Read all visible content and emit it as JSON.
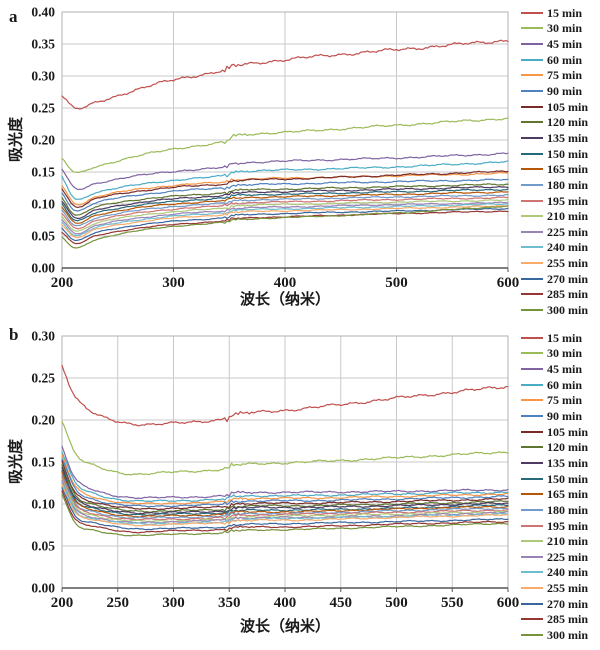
{
  "chart_data": [
    {
      "type": "line",
      "panel_label": "a",
      "xlabel": "波长（纳米）",
      "ylabel": "吸光度",
      "xlim": [
        200,
        600
      ],
      "xticks": [
        200,
        300,
        400,
        500,
        600
      ],
      "ylim": [
        0.0,
        0.4
      ],
      "ytick_step": 0.05,
      "grid": true,
      "legend_position": "right",
      "gridline_color": "#c9c9c9",
      "frame_color": "#b0b0b0",
      "axis_color": "#555555",
      "x_anchors": [
        200,
        212,
        230,
        260,
        300,
        349,
        352,
        420,
        500,
        600
      ],
      "series": [
        {
          "name": "15 min",
          "color": "#C0504D",
          "values": [
            0.27,
            0.249,
            0.258,
            0.275,
            0.294,
            0.31,
            0.315,
            0.329,
            0.341,
            0.356
          ]
        },
        {
          "name": "30 min",
          "color": "#9BBB59",
          "values": [
            0.171,
            0.149,
            0.158,
            0.172,
            0.186,
            0.198,
            0.206,
            0.214,
            0.223,
            0.234
          ]
        },
        {
          "name": "45 min",
          "color": "#8064A2",
          "values": [
            0.154,
            0.124,
            0.132,
            0.142,
            0.151,
            0.158,
            0.163,
            0.168,
            0.172,
            0.179
          ]
        },
        {
          "name": "60 min",
          "color": "#4BACC6",
          "values": [
            0.142,
            0.108,
            0.118,
            0.128,
            0.137,
            0.145,
            0.15,
            0.154,
            0.158,
            0.166
          ]
        },
        {
          "name": "75 min",
          "color": "#F79646",
          "values": [
            0.129,
            0.1,
            0.111,
            0.121,
            0.129,
            0.135,
            0.138,
            0.141,
            0.144,
            0.148
          ]
        },
        {
          "name": "90 min",
          "color": "#4F81BD",
          "values": [
            0.117,
            0.09,
            0.102,
            0.112,
            0.12,
            0.126,
            0.129,
            0.132,
            0.135,
            0.138
          ]
        },
        {
          "name": "105 min",
          "color": "#772C2A",
          "values": [
            0.124,
            0.096,
            0.108,
            0.118,
            0.126,
            0.132,
            0.136,
            0.14,
            0.145,
            0.151
          ]
        },
        {
          "name": "120 min",
          "color": "#5F7530",
          "values": [
            0.11,
            0.083,
            0.095,
            0.105,
            0.112,
            0.118,
            0.121,
            0.124,
            0.127,
            0.131
          ]
        },
        {
          "name": "135 min",
          "color": "#4D3B62",
          "values": [
            0.105,
            0.078,
            0.09,
            0.1,
            0.108,
            0.114,
            0.117,
            0.12,
            0.123,
            0.127
          ]
        },
        {
          "name": "150 min",
          "color": "#276A7C",
          "values": [
            0.1,
            0.074,
            0.086,
            0.096,
            0.104,
            0.11,
            0.113,
            0.116,
            0.119,
            0.123
          ]
        },
        {
          "name": "165 min",
          "color": "#B65708",
          "values": [
            0.095,
            0.07,
            0.082,
            0.092,
            0.1,
            0.106,
            0.109,
            0.112,
            0.115,
            0.119
          ]
        },
        {
          "name": "180 min",
          "color": "#729ACA",
          "values": [
            0.09,
            0.066,
            0.078,
            0.088,
            0.096,
            0.102,
            0.105,
            0.108,
            0.111,
            0.114
          ]
        },
        {
          "name": "195 min",
          "color": "#CD7371",
          "values": [
            0.085,
            0.062,
            0.074,
            0.084,
            0.092,
            0.098,
            0.101,
            0.104,
            0.107,
            0.11
          ]
        },
        {
          "name": "210 min",
          "color": "#AFC97A",
          "values": [
            0.08,
            0.058,
            0.07,
            0.08,
            0.088,
            0.094,
            0.097,
            0.1,
            0.103,
            0.106
          ]
        },
        {
          "name": "225 min",
          "color": "#9983B5",
          "values": [
            0.076,
            0.054,
            0.066,
            0.076,
            0.084,
            0.09,
            0.093,
            0.096,
            0.099,
            0.102
          ]
        },
        {
          "name": "240 min",
          "color": "#6FBDD1",
          "values": [
            0.072,
            0.051,
            0.063,
            0.073,
            0.081,
            0.087,
            0.09,
            0.093,
            0.096,
            0.1
          ]
        },
        {
          "name": "255 min",
          "color": "#F9AB6B",
          "values": [
            0.068,
            0.048,
            0.06,
            0.07,
            0.078,
            0.084,
            0.087,
            0.09,
            0.093,
            0.097
          ]
        },
        {
          "name": "270 min",
          "color": "#3A679D",
          "values": [
            0.062,
            0.043,
            0.055,
            0.065,
            0.073,
            0.079,
            0.082,
            0.086,
            0.089,
            0.093
          ]
        },
        {
          "name": "285 min",
          "color": "#953734",
          "values": [
            0.056,
            0.038,
            0.05,
            0.06,
            0.068,
            0.074,
            0.077,
            0.081,
            0.085,
            0.089
          ]
        },
        {
          "name": "300 min",
          "color": "#77933C",
          "values": [
            0.048,
            0.031,
            0.044,
            0.056,
            0.065,
            0.072,
            0.075,
            0.08,
            0.086,
            0.097
          ]
        }
      ]
    },
    {
      "type": "line",
      "panel_label": "b",
      "xlabel": "波长（纳米）",
      "ylabel": "吸光度",
      "xlim": [
        200,
        600
      ],
      "xticks": [
        200,
        250,
        300,
        350,
        400,
        450,
        500,
        550,
        600
      ],
      "ylim": [
        0.0,
        0.3
      ],
      "ytick_step": 0.05,
      "grid": true,
      "legend_position": "right",
      "gridline_color": "#c9c9c9",
      "frame_color": "#b0b0b0",
      "axis_color": "#555555",
      "x_anchors": [
        200,
        212,
        230,
        260,
        300,
        349,
        352,
        420,
        500,
        600
      ],
      "series": [
        {
          "name": "15 min",
          "color": "#C0504D",
          "values": [
            0.265,
            0.228,
            0.207,
            0.196,
            0.196,
            0.202,
            0.206,
            0.214,
            0.226,
            0.24
          ]
        },
        {
          "name": "30 min",
          "color": "#9BBB59",
          "values": [
            0.2,
            0.16,
            0.145,
            0.136,
            0.138,
            0.142,
            0.146,
            0.15,
            0.155,
            0.162
          ]
        },
        {
          "name": "45 min",
          "color": "#8064A2",
          "values": [
            0.168,
            0.13,
            0.116,
            0.108,
            0.108,
            0.11,
            0.113,
            0.114,
            0.115,
            0.117
          ]
        },
        {
          "name": "60 min",
          "color": "#4BACC6",
          "values": [
            0.162,
            0.125,
            0.112,
            0.104,
            0.104,
            0.106,
            0.109,
            0.11,
            0.112,
            0.114
          ]
        },
        {
          "name": "75 min",
          "color": "#F79646",
          "values": [
            0.158,
            0.121,
            0.108,
            0.101,
            0.101,
            0.103,
            0.106,
            0.107,
            0.109,
            0.112
          ]
        },
        {
          "name": "90 min",
          "color": "#4F81BD",
          "values": [
            0.154,
            0.118,
            0.105,
            0.098,
            0.098,
            0.1,
            0.103,
            0.104,
            0.106,
            0.109
          ]
        },
        {
          "name": "105 min",
          "color": "#772C2A",
          "values": [
            0.15,
            0.114,
            0.102,
            0.095,
            0.095,
            0.097,
            0.1,
            0.101,
            0.103,
            0.106
          ]
        },
        {
          "name": "120 min",
          "color": "#5F7530",
          "values": [
            0.147,
            0.111,
            0.099,
            0.092,
            0.092,
            0.094,
            0.097,
            0.098,
            0.1,
            0.103
          ]
        },
        {
          "name": "135 min",
          "color": "#4D3B62",
          "values": [
            0.144,
            0.108,
            0.096,
            0.09,
            0.09,
            0.092,
            0.095,
            0.096,
            0.098,
            0.101
          ]
        },
        {
          "name": "150 min",
          "color": "#276A7C",
          "values": [
            0.141,
            0.105,
            0.094,
            0.088,
            0.088,
            0.09,
            0.092,
            0.093,
            0.095,
            0.099
          ]
        },
        {
          "name": "165 min",
          "color": "#B65708",
          "values": [
            0.138,
            0.103,
            0.092,
            0.086,
            0.086,
            0.088,
            0.09,
            0.091,
            0.094,
            0.097
          ]
        },
        {
          "name": "180 min",
          "color": "#729ACA",
          "values": [
            0.135,
            0.1,
            0.09,
            0.084,
            0.084,
            0.086,
            0.088,
            0.089,
            0.092,
            0.095
          ]
        },
        {
          "name": "195 min",
          "color": "#CD7371",
          "values": [
            0.132,
            0.098,
            0.088,
            0.082,
            0.082,
            0.084,
            0.086,
            0.088,
            0.09,
            0.093
          ]
        },
        {
          "name": "210 min",
          "color": "#AFC97A",
          "values": [
            0.129,
            0.096,
            0.086,
            0.08,
            0.08,
            0.082,
            0.084,
            0.086,
            0.088,
            0.091
          ]
        },
        {
          "name": "225 min",
          "color": "#9983B5",
          "values": [
            0.127,
            0.094,
            0.084,
            0.078,
            0.079,
            0.081,
            0.083,
            0.084,
            0.086,
            0.09
          ]
        },
        {
          "name": "240 min",
          "color": "#6FBDD1",
          "values": [
            0.125,
            0.092,
            0.082,
            0.077,
            0.077,
            0.079,
            0.081,
            0.083,
            0.085,
            0.088
          ]
        },
        {
          "name": "255 min",
          "color": "#F9AB6B",
          "values": [
            0.123,
            0.09,
            0.081,
            0.075,
            0.076,
            0.078,
            0.08,
            0.081,
            0.084,
            0.087
          ]
        },
        {
          "name": "270 min",
          "color": "#3A679D",
          "values": [
            0.12,
            0.086,
            0.077,
            0.071,
            0.071,
            0.073,
            0.075,
            0.077,
            0.079,
            0.082
          ]
        },
        {
          "name": "285 min",
          "color": "#953734",
          "values": [
            0.116,
            0.082,
            0.073,
            0.067,
            0.068,
            0.07,
            0.072,
            0.073,
            0.076,
            0.079
          ]
        },
        {
          "name": "300 min",
          "color": "#77933C",
          "values": [
            0.112,
            0.077,
            0.068,
            0.063,
            0.064,
            0.066,
            0.068,
            0.07,
            0.073,
            0.077
          ]
        }
      ]
    }
  ]
}
